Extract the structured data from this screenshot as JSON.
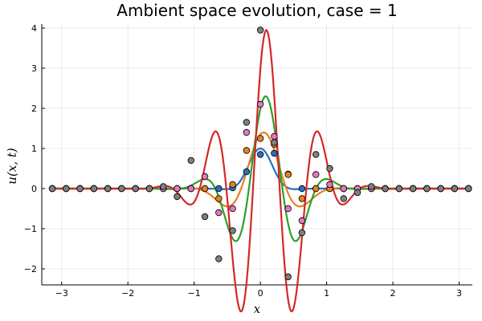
{
  "chart_data": {
    "type": "line",
    "title": "Ambient space evolution, case = 1",
    "xlabel": "x",
    "ylabel": "u(x, t)",
    "xlim": [
      -3.3,
      3.2
    ],
    "ylim": [
      -2.4,
      4.1
    ],
    "xticks": [
      -3,
      -2,
      -1,
      0,
      1,
      2,
      3
    ],
    "yticks": [
      -2,
      -1,
      0,
      1,
      2,
      3,
      4
    ],
    "grid": true,
    "legend": "none",
    "sample_x": [
      -3.1416,
      -2.9322,
      -2.7227,
      -2.5133,
      -2.3038,
      -2.0944,
      -1.885,
      -1.6755,
      -1.4661,
      -1.2566,
      -1.0472,
      -0.8378,
      -0.6283,
      -0.4189,
      -0.2094,
      0.0,
      0.2094,
      0.4189,
      0.6283,
      0.8378,
      1.0472,
      1.2566,
      1.4661,
      1.6755,
      1.885,
      2.0944,
      2.3038,
      2.5133,
      2.7227,
      2.9322,
      3.1416
    ],
    "series": [
      {
        "color": "#2a6fbf",
        "curve": {
          "a": 1.0,
          "mu": 0.0,
          "sigma": 0.22,
          "k": 3.5,
          "phi": 0.0
        },
        "markers": [
          0.0,
          0.0,
          0.0,
          0.0,
          0.0,
          0.0,
          0.0,
          0.0,
          0.0,
          0.0,
          0.0,
          0.0,
          0.0,
          0.02,
          0.42,
          0.85,
          0.88,
          0.36,
          0.0,
          0.0,
          0.0,
          0.0,
          0.0,
          0.0,
          0.0,
          0.0,
          0.0,
          0.0,
          0.0,
          0.0,
          0.0
        ]
      },
      {
        "color": "#e8821e",
        "curve": {
          "a": 1.4,
          "mu": 0.05,
          "sigma": 0.4,
          "k": 4.6,
          "phi": 0.0
        },
        "markers": [
          0.0,
          0.0,
          0.0,
          0.0,
          0.0,
          0.0,
          0.0,
          0.0,
          0.0,
          0.0,
          0.0,
          0.0,
          -0.25,
          0.1,
          0.95,
          1.25,
          1.1,
          0.35,
          -0.25,
          0.0,
          0.0,
          0.0,
          0.0,
          0.0,
          0.0,
          0.0,
          0.0,
          0.0,
          0.0,
          0.0,
          0.0
        ]
      },
      {
        "color": "#2ca02c",
        "curve": {
          "a": 2.3,
          "mu": 0.08,
          "sigma": 0.45,
          "k": 6.2,
          "phi": 0.0
        },
        "markers": [
          0.0,
          0.0,
          0.0,
          0.0,
          0.0,
          0.0,
          0.0,
          0.0,
          0.0,
          0.0,
          0.0,
          0.3,
          -0.6,
          -0.5,
          1.4,
          2.1,
          1.3,
          -0.5,
          -0.8,
          0.35,
          0.1,
          0.0,
          0.0,
          0.0,
          0.0,
          0.0,
          0.0,
          0.0,
          0.0,
          0.0,
          0.0
        ]
      },
      {
        "color": "#d62728",
        "curve": {
          "a": 3.95,
          "mu": 0.09,
          "sigma": 0.55,
          "k": 7.8,
          "phi": 0.0
        },
        "markers": [
          0.0,
          0.0,
          0.0,
          0.0,
          0.0,
          0.0,
          0.0,
          0.0,
          0.05,
          -0.2,
          0.7,
          -0.7,
          -1.75,
          -1.05,
          1.65,
          3.95,
          1.15,
          -2.2,
          -1.1,
          0.85,
          0.5,
          -0.25,
          -0.1,
          0.05,
          0.0,
          0.0,
          0.0,
          0.0,
          0.0,
          0.0,
          0.0
        ]
      }
    ],
    "marker_colors": [
      "#e377c2",
      "#7f7f7f"
    ]
  }
}
